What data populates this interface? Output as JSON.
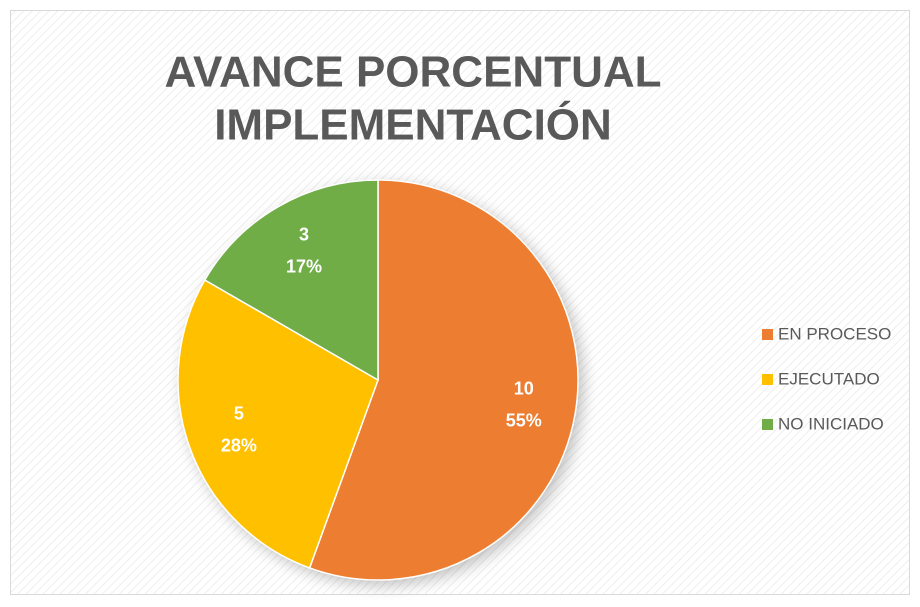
{
  "chart_data": {
    "type": "pie",
    "title": [
      "AVANCE PORCENTUAL",
      "IMPLEMENTACIÓN"
    ],
    "categories": [
      "EN PROCESO",
      "EJECUTADO",
      "NO INICIADO"
    ],
    "values": [
      10,
      5,
      3
    ],
    "percent_labels": [
      "55%",
      "28%",
      "17%"
    ],
    "colors": [
      "#ED7D31",
      "#FFC000",
      "#70AD47"
    ],
    "legend": "right"
  }
}
